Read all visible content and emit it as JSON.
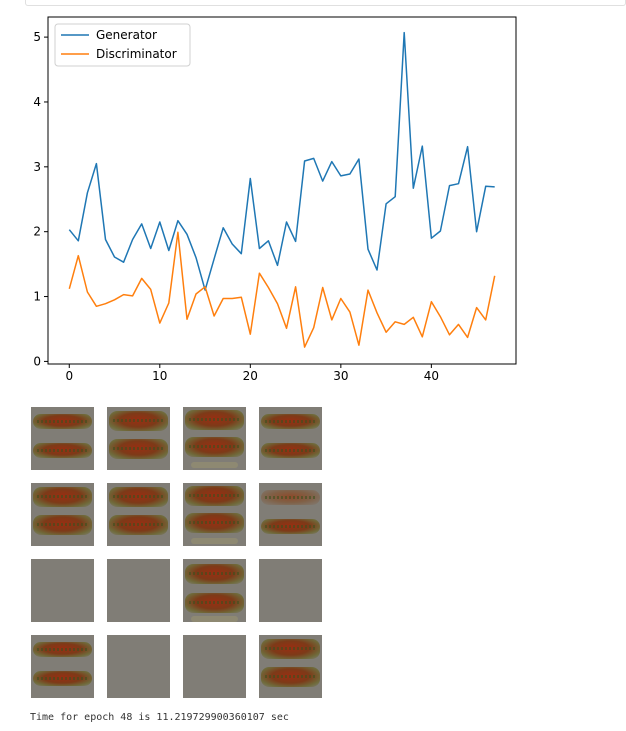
{
  "chart_data": {
    "type": "line",
    "x": [
      0,
      1,
      2,
      3,
      4,
      5,
      6,
      7,
      8,
      9,
      10,
      11,
      12,
      13,
      14,
      15,
      16,
      17,
      18,
      19,
      20,
      21,
      22,
      23,
      24,
      25,
      26,
      27,
      28,
      29,
      30,
      31,
      32,
      33,
      34,
      35,
      36,
      37,
      38,
      39,
      40,
      41,
      42,
      43,
      44,
      45,
      46,
      47
    ],
    "series": [
      {
        "name": "Generator",
        "color": "#1f77b4",
        "values": [
          2.03,
          1.86,
          2.6,
          3.05,
          1.88,
          1.61,
          1.53,
          1.88,
          2.12,
          1.74,
          2.15,
          1.71,
          2.17,
          1.96,
          1.6,
          1.1,
          1.58,
          2.06,
          1.81,
          1.66,
          2.82,
          1.74,
          1.86,
          1.48,
          2.15,
          1.85,
          3.09,
          3.13,
          2.78,
          3.08,
          2.86,
          2.89,
          3.12,
          1.73,
          1.41,
          2.43,
          2.54,
          5.07,
          2.67,
          3.32,
          1.9,
          2.01,
          2.71,
          2.74,
          3.31,
          2.0,
          2.7,
          2.69
        ]
      },
      {
        "name": "Discriminator",
        "color": "#ff7f0e",
        "values": [
          1.12,
          1.63,
          1.07,
          0.85,
          0.89,
          0.95,
          1.03,
          1.01,
          1.28,
          1.11,
          0.59,
          0.9,
          1.99,
          0.65,
          1.04,
          1.15,
          0.7,
          0.97,
          0.97,
          0.99,
          0.42,
          1.36,
          1.14,
          0.89,
          0.51,
          1.15,
          0.22,
          0.52,
          1.14,
          0.64,
          0.97,
          0.76,
          0.25,
          1.1,
          0.75,
          0.45,
          0.61,
          0.57,
          0.68,
          0.38,
          0.92,
          0.69,
          0.41,
          0.57,
          0.37,
          0.83,
          0.64,
          1.32
        ]
      }
    ],
    "xticks": [
      0,
      10,
      20,
      30,
      40
    ],
    "yticks": [
      0,
      1,
      2,
      3,
      4,
      5
    ],
    "xlim": [
      -2.35,
      49.35
    ],
    "ylim": [
      -0.04,
      5.31
    ],
    "legend": "top-left",
    "grid": false,
    "title": "",
    "xlabel": "",
    "ylabel": ""
  },
  "samples": [
    [
      "two",
      "two-thick",
      "two-thick-haze",
      "two"
    ],
    [
      "two-thick",
      "two-thick",
      "two-thick-haze",
      "two-faint"
    ],
    [
      "empty",
      "empty",
      "two-lower",
      "empty"
    ],
    [
      "two",
      "empty",
      "empty",
      "two-thick"
    ]
  ],
  "status": {
    "epoch_text": "Time for epoch 48 is 11.219729900360107 sec"
  }
}
